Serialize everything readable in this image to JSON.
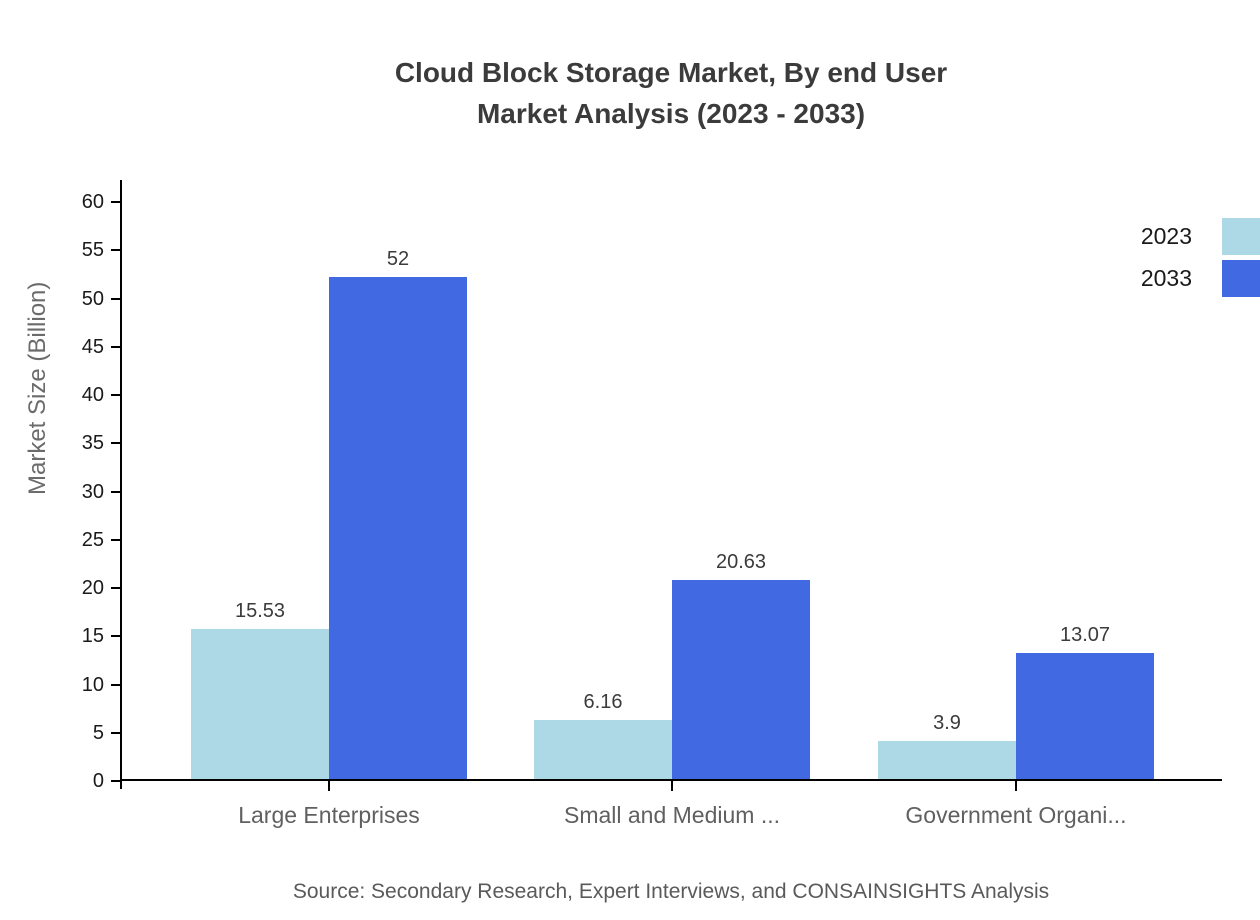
{
  "title": {
    "line1": "Cloud Block Storage Market, By end User",
    "line2": "Market Analysis (2023 - 2033)"
  },
  "source": "Source: Secondary Research, Expert Interviews, and CONSAINSIGHTS Analysis",
  "colors": {
    "series_2023": "#ADD8E6",
    "series_2033": "#4169E1",
    "axis_line": "#000000",
    "title_text": "#3b3b3b",
    "tick_text": "#1a1a1a",
    "category_text": "#606060",
    "axis_label_text": "#6b6b6b",
    "source_text": "#5a5a5a",
    "background": "#ffffff"
  },
  "chart_data": {
    "type": "bar",
    "title": "Cloud Block Storage Market, By end User Market Analysis (2023 - 2033)",
    "categories": [
      "Large Enterprises",
      "Small and Medium ...",
      "Government Organi..."
    ],
    "series": [
      {
        "name": "2023",
        "color": "#ADD8E6",
        "values": [
          15.53,
          6.16,
          3.9
        ],
        "labels": [
          "15.53",
          "6.16",
          "3.9"
        ]
      },
      {
        "name": "2033",
        "color": "#4169E1",
        "values": [
          52,
          20.63,
          13.07
        ],
        "labels": [
          "52",
          "20.63",
          "13.07"
        ]
      }
    ],
    "xlabel": "",
    "ylabel": "Market Size (Billion)",
    "ylim": [
      0,
      60
    ],
    "yticks": [
      0,
      5,
      10,
      15,
      20,
      25,
      30,
      35,
      40,
      45,
      50,
      55,
      60
    ],
    "grid": false,
    "legend_position": "top-right",
    "bar_value_labels_shown": true
  }
}
